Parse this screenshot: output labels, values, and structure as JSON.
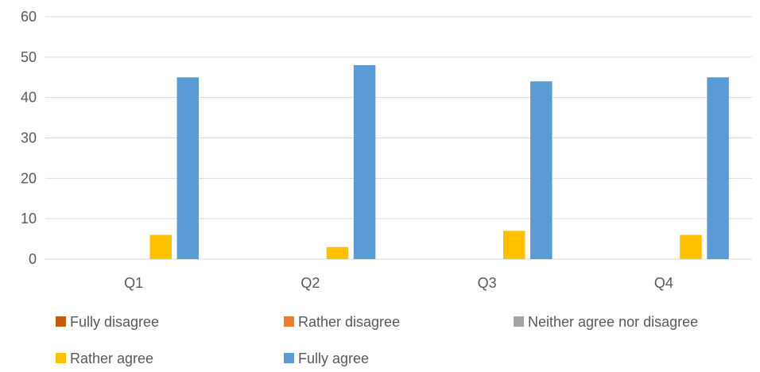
{
  "chart_data": {
    "type": "bar",
    "title": "",
    "xlabel": "",
    "ylabel": "",
    "categories": [
      "Q1",
      "Q2",
      "Q3",
      "Q4"
    ],
    "ylim": [
      0,
      60
    ],
    "yticks": [
      0,
      10,
      20,
      30,
      40,
      50,
      60
    ],
    "grid": true,
    "legend_position": "bottom",
    "series": [
      {
        "name": "Fully disagree",
        "color": "#c55a11",
        "values": [
          0,
          0,
          0,
          0
        ]
      },
      {
        "name": "Rather disagree",
        "color": "#ed7d31",
        "values": [
          0,
          0,
          0,
          0
        ]
      },
      {
        "name": "Neither agree nor disagree",
        "color": "#a5a5a5",
        "values": [
          0,
          0,
          0,
          0
        ]
      },
      {
        "name": "Rather agree",
        "color": "#ffc000",
        "values": [
          6,
          3,
          7,
          6
        ]
      },
      {
        "name": "Fully agree",
        "color": "#5b9bd5",
        "values": [
          45,
          48,
          44,
          45
        ]
      }
    ]
  }
}
